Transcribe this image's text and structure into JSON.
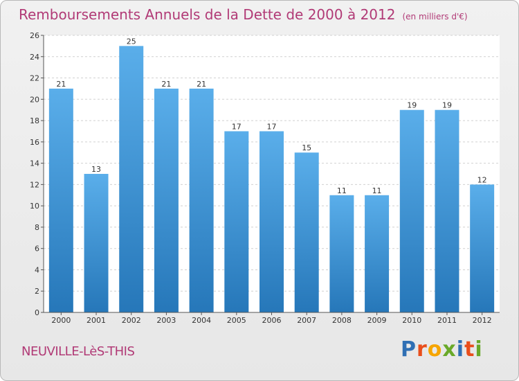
{
  "title": "Remboursements Annuels de la Dette de 2000 à 2012",
  "subtitle": "(en milliers d'€)",
  "commune": "NEUVILLE-LèS-THIS",
  "logo": {
    "letters": [
      "P",
      "r",
      "o",
      "x",
      "i",
      "t",
      "i"
    ],
    "colors": [
      "#2f6fb4",
      "#e94e1b",
      "#f6a500",
      "#69a929",
      "#2f6fb4",
      "#e94e1b",
      "#69a929"
    ]
  },
  "chart_data": {
    "type": "bar",
    "categories": [
      "2000",
      "2001",
      "2002",
      "2003",
      "2004",
      "2005",
      "2006",
      "2007",
      "2008",
      "2009",
      "2010",
      "2011",
      "2012"
    ],
    "values": [
      21,
      13,
      25,
      21,
      21,
      17,
      17,
      15,
      11,
      11,
      19,
      19,
      12
    ],
    "title": "Remboursements Annuels de la Dette de 2000 à 2012",
    "subtitle": "(en milliers d'€)",
    "ylim": [
      0,
      26
    ],
    "yticks": [
      0,
      2,
      4,
      6,
      8,
      10,
      12,
      14,
      16,
      18,
      20,
      22,
      24,
      26
    ],
    "grid": true,
    "colors": {
      "bar_top": "#5aaeea",
      "bar_bottom": "#2677b9"
    }
  }
}
